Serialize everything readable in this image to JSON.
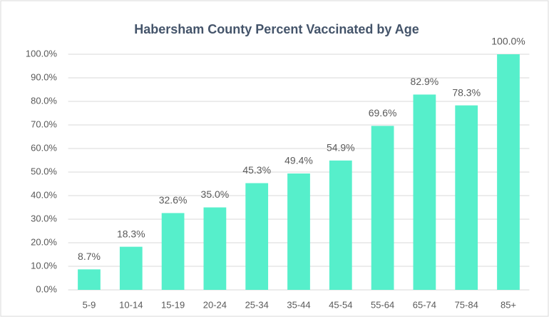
{
  "chart_data": {
    "type": "bar",
    "title": "Habersham County Percent Vaccinated by Age",
    "categories": [
      "5-9",
      "10-14",
      "15-19",
      "20-24",
      "25-34",
      "35-44",
      "45-54",
      "55-64",
      "65-74",
      "75-84",
      "85+"
    ],
    "values": [
      8.7,
      18.3,
      32.6,
      35.0,
      45.3,
      49.4,
      54.9,
      69.6,
      82.9,
      78.3,
      100.0
    ],
    "value_labels": [
      "8.7%",
      "18.3%",
      "32.6%",
      "35.0%",
      "45.3%",
      "49.4%",
      "54.9%",
      "69.6%",
      "82.9%",
      "78.3%",
      "100.0%"
    ],
    "color": "#56efcb",
    "ylim": [
      0,
      100
    ],
    "yticks": [
      {
        "value": 0,
        "label": "0.0%"
      },
      {
        "value": 10,
        "label": "10.0%"
      },
      {
        "value": 20,
        "label": "20.0%"
      },
      {
        "value": 30,
        "label": "30.0%"
      },
      {
        "value": 40,
        "label": "40.0%"
      },
      {
        "value": 50,
        "label": "50.0%"
      },
      {
        "value": 60,
        "label": "60.0%"
      },
      {
        "value": 70,
        "label": "70.0%"
      },
      {
        "value": 80,
        "label": "80.0%"
      },
      {
        "value": 90,
        "label": "90.0%"
      },
      {
        "value": 100,
        "label": "100.0%"
      }
    ],
    "grid": true
  }
}
